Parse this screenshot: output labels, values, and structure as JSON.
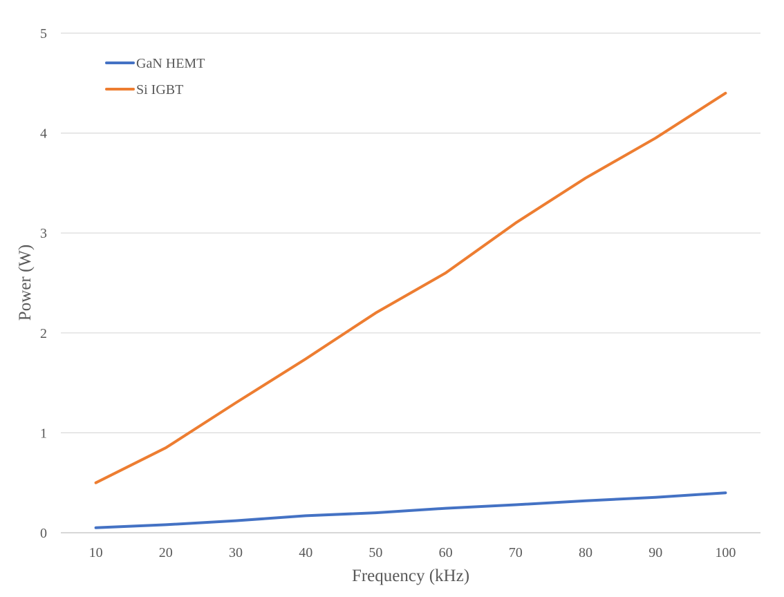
{
  "chart_data": {
    "type": "line",
    "title": "",
    "xlabel": "Frequency (kHz)",
    "ylabel": "Power (W)",
    "categories": [
      "10",
      "20",
      "30",
      "40",
      "50",
      "60",
      "70",
      "80",
      "90",
      "100"
    ],
    "ylim": [
      0,
      5
    ],
    "yticks": [
      "0",
      "1",
      "2",
      "3",
      "4",
      "5"
    ],
    "grid": true,
    "legend_position": "top-left",
    "series": [
      {
        "name": "GaN HEMT",
        "color": "#4472C4",
        "values": [
          0.05,
          0.08,
          0.12,
          0.17,
          0.2,
          0.245,
          0.28,
          0.32,
          0.355,
          0.4
        ]
      },
      {
        "name": "Si IGBT",
        "color": "#ED7D31",
        "values": [
          0.5,
          0.85,
          1.3,
          1.74,
          2.2,
          2.6,
          3.1,
          3.55,
          3.95,
          4.4
        ]
      }
    ]
  }
}
